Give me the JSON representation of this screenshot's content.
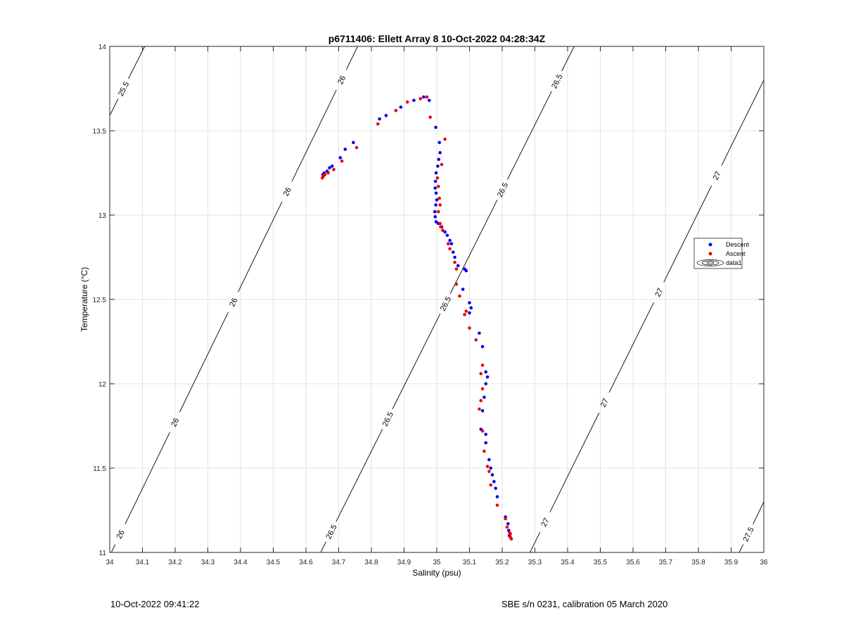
{
  "chart_data": {
    "type": "scatter",
    "title": "p6711406: Ellett Array 8 10-Oct-2022 04:28:34Z",
    "xlabel": "Salinity (psu)",
    "ylabel": "Temperature (°C)",
    "xlim": [
      34,
      36
    ],
    "ylim": [
      11,
      14
    ],
    "xticks": [
      34,
      34.1,
      34.2,
      34.3,
      34.4,
      34.5,
      34.6,
      34.7,
      34.8,
      34.9,
      35,
      35.1,
      35.2,
      35.3,
      35.4,
      35.5,
      35.6,
      35.7,
      35.8,
      35.9,
      36
    ],
    "xtick_labels": [
      "34",
      "34.1",
      "34.2",
      "34.3",
      "34.4",
      "34.5",
      "34.6",
      "34.7",
      "34.8",
      "34.9",
      "35",
      "35.1",
      "35.2",
      "35.3",
      "35.4",
      "35.5",
      "35.6",
      "35.7",
      "35.8",
      "35.9",
      "36"
    ],
    "yticks": [
      11,
      11.5,
      12,
      12.5,
      13,
      13.5,
      14
    ],
    "ytick_labels": [
      "11",
      "11.5",
      "12",
      "12.5",
      "13",
      "13.5",
      "14"
    ],
    "grid": true,
    "legend_position": "right",
    "legend": [
      "Descent",
      "Ascent",
      "data1"
    ],
    "contours": [
      {
        "level": "25.5",
        "points": [
          [
            34,
            13.59
          ],
          [
            34.107,
            14
          ]
        ],
        "labels": [
          [
            34.04,
            13.75
          ]
        ]
      },
      {
        "level": "26",
        "points": [
          [
            34.005,
            11
          ],
          [
            34.758,
            14
          ]
        ],
        "labels": [
          [
            34.04,
            11.1
          ],
          [
            34.19,
            11.78
          ],
          [
            34.36,
            12.5
          ],
          [
            34.53,
            13.15
          ],
          [
            34.71,
            13.8
          ]
        ]
      },
      {
        "level": "26.5",
        "points": [
          [
            34.645,
            11
          ],
          [
            35.42,
            14
          ]
        ],
        "labels": [
          [
            34.69,
            11.11
          ],
          [
            34.84,
            11.8
          ],
          [
            35.0,
            12.5
          ],
          [
            35.18,
            13.17
          ],
          [
            35.36,
            13.8
          ]
        ]
      },
      {
        "level": "27",
        "points": [
          [
            35.285,
            11
          ],
          [
            36,
            13.8
          ]
        ],
        "labels": [
          [
            35.33,
            11.18
          ],
          [
            35.52,
            11.88
          ],
          [
            35.67,
            12.55
          ],
          [
            35.86,
            13.23
          ]
        ]
      },
      {
        "level": "27.5",
        "points": [
          [
            35.925,
            11
          ],
          [
            36,
            11.3
          ]
        ],
        "labels": [
          [
            35.96,
            11.1
          ]
        ]
      }
    ],
    "series": [
      {
        "name": "Descent",
        "color": "#0000ee",
        "points": [
          [
            34.652,
            13.24
          ],
          [
            34.656,
            13.25
          ],
          [
            34.665,
            13.26
          ],
          [
            34.672,
            13.28
          ],
          [
            34.68,
            13.29
          ],
          [
            34.705,
            13.34
          ],
          [
            34.72,
            13.39
          ],
          [
            34.745,
            13.43
          ],
          [
            34.825,
            13.57
          ],
          [
            34.845,
            13.59
          ],
          [
            34.89,
            13.64
          ],
          [
            34.93,
            13.68
          ],
          [
            34.96,
            13.7
          ],
          [
            34.977,
            13.68
          ],
          [
            34.997,
            13.52
          ],
          [
            35.008,
            13.43
          ],
          [
            35.01,
            13.37
          ],
          [
            35.006,
            13.33
          ],
          [
            35.003,
            13.29
          ],
          [
            34.998,
            13.25
          ],
          [
            34.996,
            13.2
          ],
          [
            34.995,
            13.16
          ],
          [
            34.998,
            13.13
          ],
          [
            35.0,
            13.09
          ],
          [
            34.997,
            13.06
          ],
          [
            34.994,
            13.02
          ],
          [
            34.995,
            12.99
          ],
          [
            34.998,
            12.96
          ],
          [
            35.005,
            12.95
          ],
          [
            35.015,
            12.93
          ],
          [
            35.025,
            12.9
          ],
          [
            35.032,
            12.88
          ],
          [
            35.04,
            12.85
          ],
          [
            35.045,
            12.83
          ],
          [
            35.05,
            12.78
          ],
          [
            35.055,
            12.75
          ],
          [
            35.065,
            12.7
          ],
          [
            35.085,
            12.68
          ],
          [
            35.09,
            12.67
          ],
          [
            35.08,
            12.56
          ],
          [
            35.1,
            12.48
          ],
          [
            35.105,
            12.45
          ],
          [
            35.1,
            12.42
          ],
          [
            35.13,
            12.3
          ],
          [
            35.14,
            12.22
          ],
          [
            35.15,
            12.07
          ],
          [
            35.155,
            12.04
          ],
          [
            35.15,
            12.0
          ],
          [
            35.145,
            11.92
          ],
          [
            35.14,
            11.84
          ],
          [
            35.135,
            11.73
          ],
          [
            35.15,
            11.7
          ],
          [
            35.15,
            11.65
          ],
          [
            35.16,
            11.55
          ],
          [
            35.165,
            11.5
          ],
          [
            35.17,
            11.46
          ],
          [
            35.175,
            11.42
          ],
          [
            35.18,
            11.38
          ],
          [
            35.185,
            11.33
          ],
          [
            35.21,
            11.21
          ],
          [
            35.218,
            11.17
          ],
          [
            35.22,
            11.13
          ],
          [
            35.222,
            11.1
          ]
        ]
      },
      {
        "name": "Ascent",
        "color": "#ee0000",
        "points": [
          [
            34.65,
            13.22
          ],
          [
            34.653,
            13.23
          ],
          [
            34.658,
            13.24
          ],
          [
            34.668,
            13.25
          ],
          [
            34.685,
            13.27
          ],
          [
            34.71,
            13.32
          ],
          [
            34.755,
            13.4
          ],
          [
            34.82,
            13.54
          ],
          [
            34.875,
            13.62
          ],
          [
            34.91,
            13.67
          ],
          [
            34.95,
            13.69
          ],
          [
            34.97,
            13.7
          ],
          [
            34.98,
            13.58
          ],
          [
            35.025,
            13.45
          ],
          [
            35.015,
            13.3
          ],
          [
            35.002,
            13.22
          ],
          [
            35.005,
            13.17
          ],
          [
            35.008,
            13.1
          ],
          [
            35.01,
            13.06
          ],
          [
            35.005,
            13.02
          ],
          [
            35.01,
            12.95
          ],
          [
            35.012,
            12.93
          ],
          [
            35.018,
            12.91
          ],
          [
            35.035,
            12.83
          ],
          [
            35.04,
            12.8
          ],
          [
            35.055,
            12.72
          ],
          [
            35.06,
            12.68
          ],
          [
            35.06,
            12.59
          ],
          [
            35.07,
            12.52
          ],
          [
            35.09,
            12.43
          ],
          [
            35.085,
            12.41
          ],
          [
            35.1,
            12.33
          ],
          [
            35.12,
            12.26
          ],
          [
            35.14,
            12.11
          ],
          [
            35.135,
            12.06
          ],
          [
            35.14,
            11.97
          ],
          [
            35.135,
            11.9
          ],
          [
            35.13,
            11.85
          ],
          [
            35.14,
            11.72
          ],
          [
            35.145,
            11.6
          ],
          [
            35.155,
            11.51
          ],
          [
            35.16,
            11.48
          ],
          [
            35.165,
            11.4
          ],
          [
            35.185,
            11.28
          ],
          [
            35.21,
            11.2
          ],
          [
            35.215,
            11.15
          ],
          [
            35.222,
            11.12
          ],
          [
            35.225,
            11.11
          ],
          [
            35.225,
            11.09
          ],
          [
            35.228,
            11.08
          ]
        ]
      }
    ]
  },
  "footer": {
    "left_text": "10-Oct-2022 09:41:22",
    "right_text": "SBE s/n 0231, calibration 05 March 2020"
  }
}
